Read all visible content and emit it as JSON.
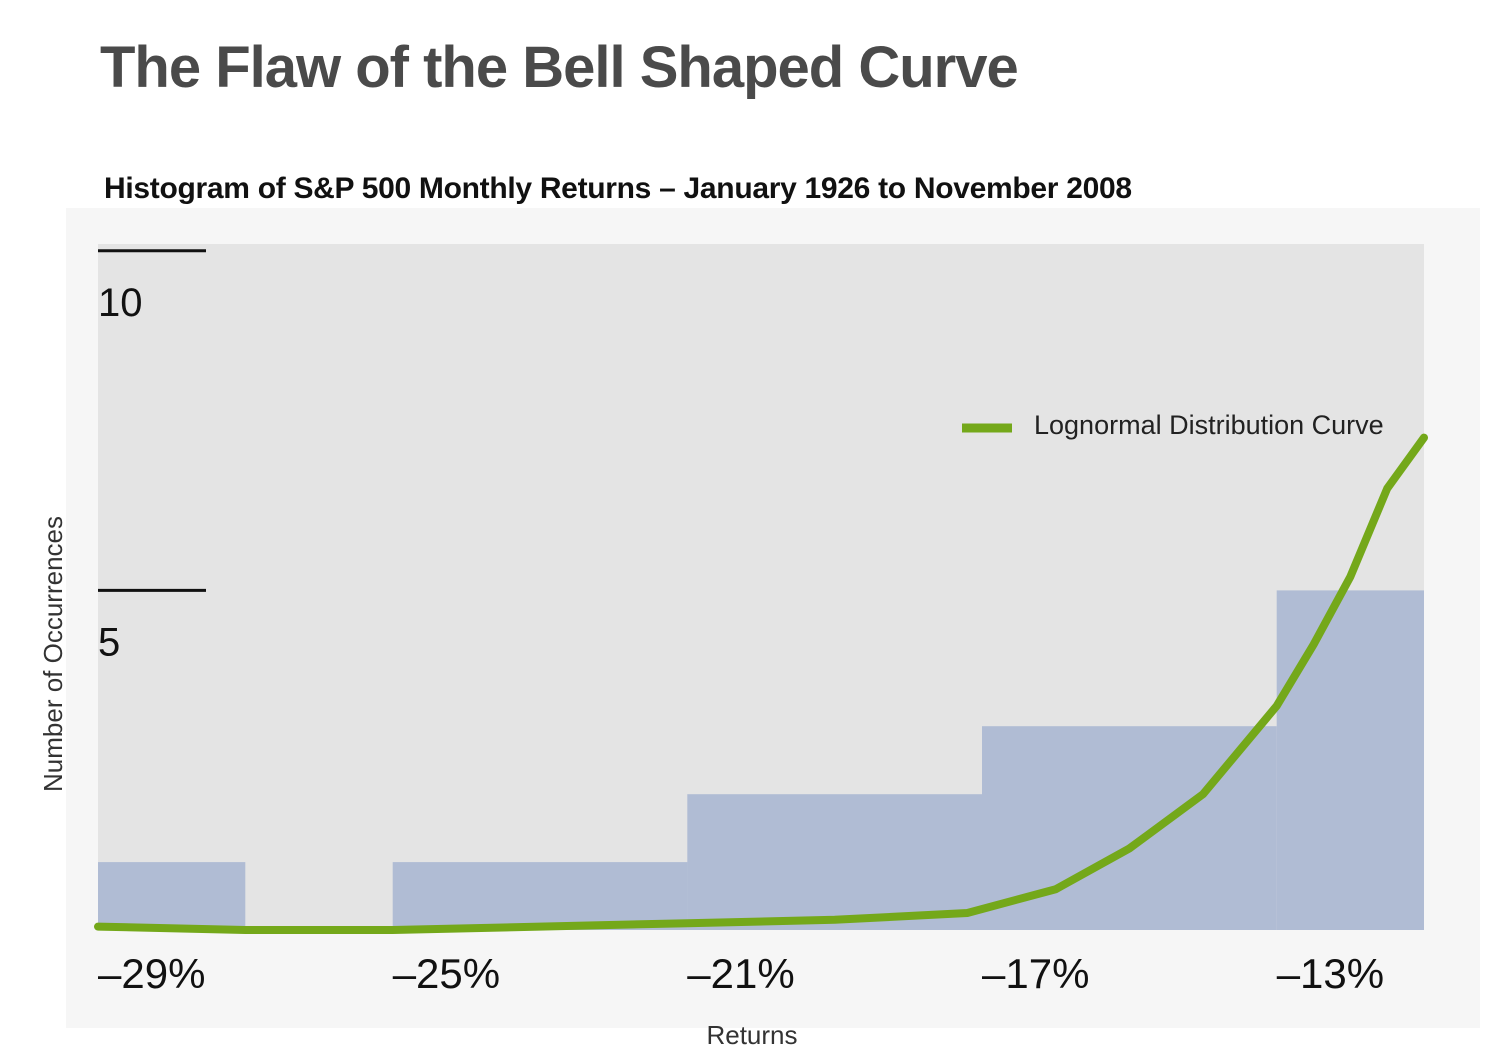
{
  "page": {
    "title": "The Flaw of the Bell Shaped Curve"
  },
  "chart_data": {
    "type": "bar",
    "title": "Histogram of S&P 500 Monthly Returns – January 1926 to November 2008",
    "xlabel": "Returns",
    "ylabel": "Number of Occurrences",
    "x_ticks": [
      "–29%",
      "–25%",
      "–21%",
      "–17%",
      "–13%"
    ],
    "x_tick_values": [
      -29,
      -25,
      -21,
      -17,
      -13
    ],
    "xlim": [
      -29,
      -11
    ],
    "y_ticks": [
      "10",
      "5"
    ],
    "y_tick_values": [
      10,
      5
    ],
    "ylim": [
      0,
      10.1
    ],
    "bins": [
      {
        "start": -29,
        "end": -27,
        "value": 1
      },
      {
        "start": -27,
        "end": -25,
        "value": 0
      },
      {
        "start": -25,
        "end": -21,
        "value": 1
      },
      {
        "start": -21,
        "end": -17,
        "value": 2
      },
      {
        "start": -17,
        "end": -13,
        "value": 3
      },
      {
        "start": -13,
        "end": -11,
        "value": 5
      }
    ],
    "curve": {
      "name": "Lognormal Distribution Curve",
      "x": [
        -29,
        -27,
        -25,
        -23,
        -21,
        -19,
        -17.2,
        -16,
        -15,
        -14,
        -13,
        -12.5,
        -12,
        -11.5,
        -11
      ],
      "y": [
        0.05,
        0.0,
        0.0,
        0.05,
        0.1,
        0.15,
        0.25,
        0.6,
        1.2,
        2.0,
        3.3,
        4.2,
        5.2,
        6.5,
        7.25
      ]
    },
    "legend": {
      "position": "top-right",
      "label": "Lognormal Distribution Curve"
    },
    "colors": {
      "plot_background": "#e4e4e4",
      "outer_background": "#f6f6f6",
      "bar": "#b0bcd4",
      "curve": "#74a81a",
      "tick_text": "#111111",
      "axis_label": "#333333"
    }
  }
}
